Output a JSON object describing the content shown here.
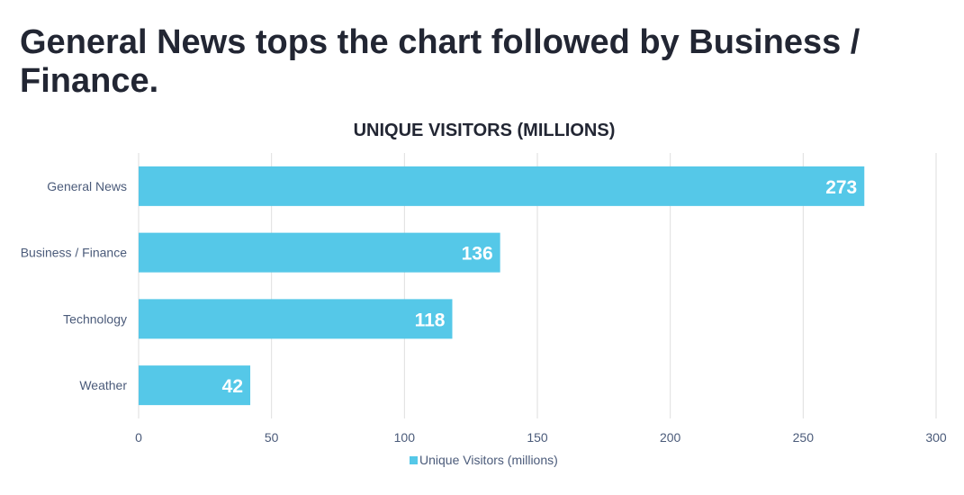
{
  "headline": "General News tops the chart followed by Business / Finance.",
  "chart_data": {
    "type": "bar",
    "orientation": "horizontal",
    "title": "UNIQUE VISITORS (MILLIONS)",
    "categories": [
      "General News",
      "Business / Finance",
      "Technology",
      "Weather"
    ],
    "series": [
      {
        "name": "Unique Visitors (millions)",
        "values": [
          273,
          136,
          118,
          42
        ],
        "color": "#55c8e8"
      }
    ],
    "xlim": [
      0,
      300
    ],
    "xticks": [
      "0",
      "50",
      "100",
      "150",
      "200",
      "250",
      "300"
    ],
    "grid": true,
    "legend": "bottom",
    "data_labels": true
  }
}
